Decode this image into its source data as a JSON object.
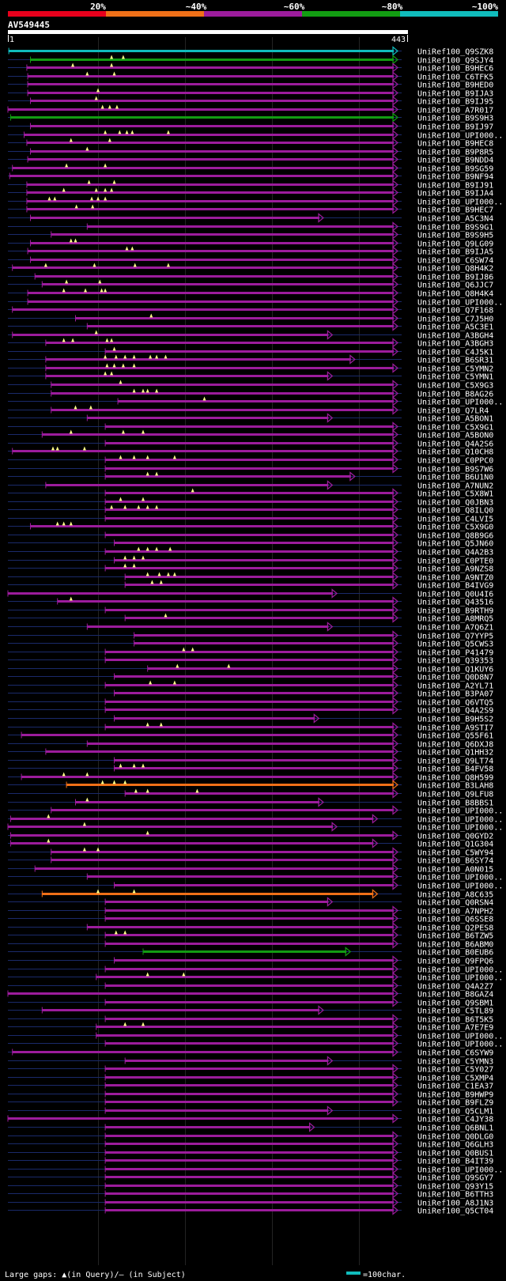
{
  "query": {
    "id": "AV549445",
    "start_label": "1",
    "end_label": "443",
    "length": 443
  },
  "identity_scale": {
    "labels": [
      "20%",
      "~40%",
      "~60%",
      "~80%",
      "~100%"
    ],
    "colors": [
      "#e8001c",
      "#f07018",
      "#9c1c9c",
      "#129c12",
      "#10bcbc"
    ]
  },
  "colors": {
    "background": "#000000",
    "grid": "#232323",
    "row_line": "#1a2a6a",
    "sample_line": "#10bcbc",
    "gap_marker": "#ffff88",
    "text": "#ffffff",
    "query_bar": "#ffffff"
  },
  "legend": {
    "text": "Large gaps: ▲(in Query)/– (in Subject)",
    "scale_text": "=100char."
  },
  "hits": [
    {
      "id": "UniRef100_Q9SZK8",
      "s": 1,
      "e": 443,
      "c": "#10bcbc",
      "g": []
    },
    {
      "id": "UniRef100_Q9SJY4",
      "s": 25,
      "e": 443,
      "c": "#129c12",
      "g": [
        115,
        128
      ]
    },
    {
      "id": "UniRef100_B9HEC6",
      "s": 21,
      "e": 440,
      "c": "#9c1c9c",
      "g": [
        72,
        115
      ]
    },
    {
      "id": "UniRef100_C6TFK5",
      "s": 22,
      "e": 440,
      "c": "#9c1c9c",
      "g": [
        88,
        118
      ]
    },
    {
      "id": "UniRef100_B9HED0",
      "s": 22,
      "e": 440,
      "c": "#9c1c9c",
      "g": []
    },
    {
      "id": "UniRef100_B9IJA3",
      "s": 22,
      "e": 437,
      "c": "#9c1c9c",
      "g": [
        100
      ]
    },
    {
      "id": "UniRef100_B9IJ95",
      "s": 25,
      "e": 437,
      "c": "#9c1c9c",
      "g": [
        98
      ]
    },
    {
      "id": "UniRef100_A7R017",
      "s": 0,
      "e": 440,
      "c": "#9c1c9c",
      "g": [
        105,
        113,
        121
      ]
    },
    {
      "id": "UniRef100_B9S9H3",
      "s": 3,
      "e": 440,
      "c": "#129c12",
      "g": []
    },
    {
      "id": "UniRef100_B9IJ97",
      "s": 25,
      "e": 437,
      "c": "#9c1c9c",
      "g": []
    },
    {
      "id": "UniRef100_UPI000..",
      "s": 18,
      "e": 437,
      "c": "#9c1c9c",
      "g": [
        108,
        124,
        132,
        138,
        178
      ]
    },
    {
      "id": "UniRef100_B9HEC8",
      "s": 21,
      "e": 437,
      "c": "#9c1c9c",
      "g": [
        70,
        113
      ]
    },
    {
      "id": "UniRef100_B9P8R5",
      "s": 25,
      "e": 437,
      "c": "#9c1c9c",
      "g": [
        88
      ]
    },
    {
      "id": "UniRef100_B9NDD4",
      "s": 22,
      "e": 437,
      "c": "#9c1c9c",
      "g": []
    },
    {
      "id": "UniRef100_B9SG59",
      "s": 5,
      "e": 440,
      "c": "#9c1c9c",
      "g": [
        65,
        108
      ]
    },
    {
      "id": "UniRef100_B9NF94",
      "s": 2,
      "e": 440,
      "c": "#9c1c9c",
      "g": []
    },
    {
      "id": "UniRef100_B9IJ91",
      "s": 21,
      "e": 440,
      "c": "#9c1c9c",
      "g": [
        90,
        118
      ]
    },
    {
      "id": "UniRef100_B9IJA4",
      "s": 21,
      "e": 440,
      "c": "#9c1c9c",
      "g": [
        62,
        98,
        108,
        115
      ]
    },
    {
      "id": "UniRef100_UPI000..",
      "s": 21,
      "e": 440,
      "c": "#9c1c9c",
      "g": [
        46,
        52,
        93,
        100,
        108
      ]
    },
    {
      "id": "UniRef100_B9HEC7",
      "s": 21,
      "e": 440,
      "c": "#9c1c9c",
      "g": [
        76,
        94
      ]
    },
    {
      "id": "UniRef100_A5C3N4",
      "s": 25,
      "e": 350,
      "c": "#9c1c9c",
      "g": []
    },
    {
      "id": "UniRef100_B9S9G1",
      "s": 88,
      "e": 437,
      "c": "#9c1c9c",
      "g": []
    },
    {
      "id": "UniRef100_B9S9H5",
      "s": 48,
      "e": 437,
      "c": "#9c1c9c",
      "g": []
    },
    {
      "id": "UniRef100_Q9LG09",
      "s": 25,
      "e": 437,
      "c": "#9c1c9c",
      "g": [
        70,
        75
      ]
    },
    {
      "id": "UniRef100_B9IJA5",
      "s": 22,
      "e": 440,
      "c": "#9c1c9c",
      "g": [
        132,
        138
      ]
    },
    {
      "id": "UniRef100_C6SW74",
      "s": 25,
      "e": 437,
      "c": "#9c1c9c",
      "g": []
    },
    {
      "id": "UniRef100_Q8H4K2",
      "s": 5,
      "e": 437,
      "c": "#9c1c9c",
      "g": [
        42,
        96,
        141,
        178
      ]
    },
    {
      "id": "UniRef100_B9IJ86",
      "s": 30,
      "e": 437,
      "c": "#9c1c9c",
      "g": []
    },
    {
      "id": "UniRef100_Q6JJC7",
      "s": 38,
      "e": 437,
      "c": "#9c1c9c",
      "g": [
        65,
        102
      ]
    },
    {
      "id": "UniRef100_Q8H4K4",
      "s": 22,
      "e": 437,
      "c": "#9c1c9c",
      "g": [
        62,
        86,
        104,
        108
      ]
    },
    {
      "id": "UniRef100_UPI000..",
      "s": 22,
      "e": 437,
      "c": "#9c1c9c",
      "g": []
    },
    {
      "id": "UniRef100_Q7F168",
      "s": 5,
      "e": 437,
      "c": "#9c1c9c",
      "g": []
    },
    {
      "id": "UniRef100_C7J5H0",
      "s": 75,
      "e": 437,
      "c": "#9c1c9c",
      "g": [
        159
      ]
    },
    {
      "id": "UniRef100_A5C3E1",
      "s": 88,
      "e": 437,
      "c": "#9c1c9c",
      "g": []
    },
    {
      "id": "UniRef100_A3BGH4",
      "s": 5,
      "e": 360,
      "c": "#9c1c9c",
      "g": [
        98
      ]
    },
    {
      "id": "UniRef100_A3BGH3",
      "s": 42,
      "e": 437,
      "c": "#9c1c9c",
      "g": [
        62,
        72,
        110,
        115
      ]
    },
    {
      "id": "UniRef100_C4J5K1",
      "s": 108,
      "e": 437,
      "c": "#9c1c9c",
      "g": [
        118
      ]
    },
    {
      "id": "UniRef100_B6SR31",
      "s": 42,
      "e": 385,
      "c": "#9c1c9c",
      "g": [
        108,
        120,
        130,
        140,
        158,
        165,
        175
      ]
    },
    {
      "id": "UniRef100_C5YMN2",
      "s": 42,
      "e": 437,
      "c": "#9c1c9c",
      "g": [
        110,
        118,
        128,
        140
      ]
    },
    {
      "id": "UniRef100_C5YMN1",
      "s": 42,
      "e": 360,
      "c": "#9c1c9c",
      "g": [
        108,
        115
      ]
    },
    {
      "id": "UniRef100_C5X9G3",
      "s": 48,
      "e": 437,
      "c": "#9c1c9c",
      "g": [
        125
      ]
    },
    {
      "id": "UniRef100_B8AG26",
      "s": 48,
      "e": 437,
      "c": "#9c1c9c",
      "g": [
        140,
        150,
        155,
        165
      ]
    },
    {
      "id": "UniRef100_UPI000..",
      "s": 122,
      "e": 440,
      "c": "#9c1c9c",
      "g": [
        218
      ]
    },
    {
      "id": "UniRef100_Q7LR4",
      "s": 48,
      "e": 437,
      "c": "#9c1c9c",
      "g": [
        75,
        92
      ]
    },
    {
      "id": "UniRef100_A5BON1",
      "s": 88,
      "e": 360,
      "c": "#9c1c9c",
      "g": []
    },
    {
      "id": "UniRef100_C5X9G1",
      "s": 108,
      "e": 437,
      "c": "#9c1c9c",
      "g": []
    },
    {
      "id": "UniRef100_A5BON0",
      "s": 38,
      "e": 437,
      "c": "#9c1c9c",
      "g": [
        70,
        128,
        150
      ]
    },
    {
      "id": "UniRef100_Q4A2S6",
      "s": 108,
      "e": 437,
      "c": "#9c1c9c",
      "g": []
    },
    {
      "id": "UniRef100_Q10CH8",
      "s": 5,
      "e": 437,
      "c": "#9c1c9c",
      "g": [
        50,
        55,
        85
      ]
    },
    {
      "id": "UniRef100_C0PPC0",
      "s": 108,
      "e": 437,
      "c": "#9c1c9c",
      "g": [
        125,
        140,
        155,
        185
      ]
    },
    {
      "id": "UniRef100_B9S7W6",
      "s": 108,
      "e": 437,
      "c": "#9c1c9c",
      "g": []
    },
    {
      "id": "UniRef100_B6U1N0",
      "s": 108,
      "e": 385,
      "c": "#9c1c9c",
      "g": [
        155,
        165
      ]
    },
    {
      "id": "UniRef100_A7NUN2",
      "s": 42,
      "e": 360,
      "c": "#9c1c9c",
      "g": []
    },
    {
      "id": "UniRef100_C5X8W1",
      "s": 108,
      "e": 437,
      "c": "#9c1c9c",
      "g": [
        205
      ]
    },
    {
      "id": "UniRef100_Q0JBN3",
      "s": 108,
      "e": 437,
      "c": "#9c1c9c",
      "g": [
        125,
        150
      ]
    },
    {
      "id": "UniRef100_Q8ILQ0",
      "s": 108,
      "e": 437,
      "c": "#9c1c9c",
      "g": [
        115,
        130,
        145,
        155,
        165
      ]
    },
    {
      "id": "UniRef100_C4LVI5",
      "s": 108,
      "e": 437,
      "c": "#9c1c9c",
      "g": []
    },
    {
      "id": "UniRef100_C5X9G0",
      "s": 25,
      "e": 437,
      "c": "#9c1c9c",
      "g": [
        55,
        62,
        70
      ]
    },
    {
      "id": "UniRef100_Q8B9G6",
      "s": 108,
      "e": 437,
      "c": "#9c1c9c",
      "g": []
    },
    {
      "id": "UniRef100_Q5JN60",
      "s": 118,
      "e": 437,
      "c": "#9c1c9c",
      "g": []
    },
    {
      "id": "UniRef100_Q4A2B3",
      "s": 108,
      "e": 437,
      "c": "#9c1c9c",
      "g": [
        145,
        155,
        165,
        180
      ]
    },
    {
      "id": "UniRef100_C0PTE0",
      "s": 118,
      "e": 437,
      "c": "#9c1c9c",
      "g": [
        130,
        140,
        150
      ]
    },
    {
      "id": "UniRef100_A9NZS8",
      "s": 108,
      "e": 437,
      "c": "#9c1c9c",
      "g": [
        130,
        140
      ]
    },
    {
      "id": "UniRef100_A9NTZ0",
      "s": 130,
      "e": 437,
      "c": "#9c1c9c",
      "g": [
        155,
        168,
        178,
        185
      ]
    },
    {
      "id": "UniRef100_B4IVG9",
      "s": 130,
      "e": 437,
      "c": "#9c1c9c",
      "g": [
        160,
        170
      ]
    },
    {
      "id": "UniRef100_Q0U4I6",
      "s": 0,
      "e": 365,
      "c": "#9c1c9c",
      "g": []
    },
    {
      "id": "UniRef100_Q43516",
      "s": 55,
      "e": 437,
      "c": "#9c1c9c",
      "g": [
        70
      ]
    },
    {
      "id": "UniRef100_B9RTH9",
      "s": 108,
      "e": 437,
      "c": "#9c1c9c",
      "g": []
    },
    {
      "id": "UniRef100_A8MRQ5",
      "s": 130,
      "e": 437,
      "c": "#9c1c9c",
      "g": [
        175
      ]
    },
    {
      "id": "UniRef100_A7Q6Z1",
      "s": 88,
      "e": 360,
      "c": "#9c1c9c",
      "g": []
    },
    {
      "id": "UniRef100_Q7YYP5",
      "s": 140,
      "e": 437,
      "c": "#9c1c9c",
      "g": []
    },
    {
      "id": "UniRef100_Q5CWS3",
      "s": 140,
      "e": 437,
      "c": "#9c1c9c",
      "g": []
    },
    {
      "id": "UniRef100_P41479",
      "s": 108,
      "e": 437,
      "c": "#9c1c9c",
      "g": [
        195,
        205
      ]
    },
    {
      "id": "UniRef100_Q39353",
      "s": 108,
      "e": 437,
      "c": "#9c1c9c",
      "g": []
    },
    {
      "id": "UniRef100_Q1KUY6",
      "s": 155,
      "e": 437,
      "c": "#9c1c9c",
      "g": [
        188,
        245
      ]
    },
    {
      "id": "UniRef100_Q0D8N7",
      "s": 118,
      "e": 437,
      "c": "#9c1c9c",
      "g": []
    },
    {
      "id": "UniRef100_A2YL71",
      "s": 108,
      "e": 437,
      "c": "#9c1c9c",
      "g": [
        158,
        185
      ]
    },
    {
      "id": "UniRef100_B3PA07",
      "s": 118,
      "e": 455,
      "c": "#9c1c9c",
      "g": []
    },
    {
      "id": "UniRef100_Q6VTQ5",
      "s": 108,
      "e": 437,
      "c": "#9c1c9c",
      "g": []
    },
    {
      "id": "UniRef100_Q4A2S9",
      "s": 108,
      "e": 437,
      "c": "#9c1c9c",
      "g": []
    },
    {
      "id": "UniRef100_B9H5S2",
      "s": 118,
      "e": 345,
      "c": "#9c1c9c",
      "g": []
    },
    {
      "id": "UniRef100_A9STI7",
      "s": 108,
      "e": 437,
      "c": "#9c1c9c",
      "g": [
        155,
        170
      ]
    },
    {
      "id": "UniRef100_Q55F61",
      "s": 15,
      "e": 437,
      "c": "#9c1c9c",
      "g": []
    },
    {
      "id": "UniRef100_Q6DXJ8",
      "s": 88,
      "e": 437,
      "c": "#9c1c9c",
      "g": []
    },
    {
      "id": "UniRef100_Q1HH32",
      "s": 42,
      "e": 437,
      "c": "#9c1c9c",
      "g": []
    },
    {
      "id": "UniRef100_Q9LT74",
      "s": 118,
      "e": 455,
      "c": "#9c1c9c",
      "g": []
    },
    {
      "id": "UniRef100_B4FV58",
      "s": 118,
      "e": 437,
      "c": "#9c1c9c",
      "g": [
        125,
        140,
        150
      ]
    },
    {
      "id": "UniRef100_Q8H599",
      "s": 15,
      "e": 437,
      "c": "#9c1c9c",
      "g": [
        62,
        88
      ]
    },
    {
      "id": "UniRef100_B3LAH8",
      "s": 65,
      "e": 437,
      "c": "#f07018",
      "g": [
        105,
        118,
        130
      ]
    },
    {
      "id": "UniRef100_Q9LFU8",
      "s": 130,
      "e": 437,
      "c": "#9c1c9c",
      "g": [
        142,
        155,
        210
      ]
    },
    {
      "id": "UniRef100_B8BBS1",
      "s": 75,
      "e": 350,
      "c": "#9c1c9c",
      "g": [
        88
      ]
    },
    {
      "id": "UniRef100_UPI000..",
      "s": 48,
      "e": 437,
      "c": "#9c1c9c",
      "g": []
    },
    {
      "id": "UniRef100_UPI000..",
      "s": 3,
      "e": 410,
      "c": "#9c1c9c",
      "g": [
        45
      ]
    },
    {
      "id": "UniRef100_UPI000..",
      "s": 0,
      "e": 365,
      "c": "#9c1c9c",
      "g": [
        85
      ]
    },
    {
      "id": "UniRef100_Q0GYD2",
      "s": 3,
      "e": 437,
      "c": "#9c1c9c",
      "g": [
        155
      ]
    },
    {
      "id": "UniRef100_Q1G304",
      "s": 3,
      "e": 410,
      "c": "#9c1c9c",
      "g": [
        45
      ]
    },
    {
      "id": "UniRef100_C5WY94",
      "s": 48,
      "e": 437,
      "c": "#9c1c9c",
      "g": [
        85,
        100
      ]
    },
    {
      "id": "UniRef100_B6SY74",
      "s": 48,
      "e": 437,
      "c": "#9c1c9c",
      "g": []
    },
    {
      "id": "UniRef100_A0N015",
      "s": 30,
      "e": 437,
      "c": "#9c1c9c",
      "g": []
    },
    {
      "id": "UniRef100_UPI000..",
      "s": 88,
      "e": 437,
      "c": "#9c1c9c",
      "g": []
    },
    {
      "id": "UniRef100_UPI000..",
      "s": 118,
      "e": 437,
      "c": "#9c1c9c",
      "g": []
    },
    {
      "id": "UniRef100_A8C635",
      "s": 38,
      "e": 410,
      "c": "#f07018",
      "g": [
        100,
        140
      ]
    },
    {
      "id": "UniRef100_Q0RSN4",
      "s": 108,
      "e": 360,
      "c": "#9c1c9c",
      "g": []
    },
    {
      "id": "UniRef100_A7NPH2",
      "s": 108,
      "e": 440,
      "c": "#9c1c9c",
      "g": []
    },
    {
      "id": "UniRef100_Q6SSE8",
      "s": 108,
      "e": 437,
      "c": "#9c1c9c",
      "g": []
    },
    {
      "id": "UniRef100_Q2PES8",
      "s": 88,
      "e": 437,
      "c": "#9c1c9c",
      "g": []
    },
    {
      "id": "UniRef100_B6TZW5",
      "s": 108,
      "e": 437,
      "c": "#9c1c9c",
      "g": [
        120,
        130
      ]
    },
    {
      "id": "UniRef100_B6ABM0",
      "s": 108,
      "e": 437,
      "c": "#9c1c9c",
      "g": []
    },
    {
      "id": "UniRef100_B0EUB6",
      "s": 150,
      "e": 380,
      "c": "#129c12",
      "g": []
    },
    {
      "id": "UniRef100_Q9FPQ6",
      "s": 118,
      "e": 437,
      "c": "#9c1c9c",
      "g": []
    },
    {
      "id": "UniRef100_UPI000..",
      "s": 108,
      "e": 437,
      "c": "#9c1c9c",
      "g": []
    },
    {
      "id": "UniRef100_UPI000..",
      "s": 98,
      "e": 437,
      "c": "#9c1c9c",
      "g": [
        155,
        195
      ]
    },
    {
      "id": "UniRef100_Q4A2Z7",
      "s": 108,
      "e": 437,
      "c": "#9c1c9c",
      "g": []
    },
    {
      "id": "UniRef100_B8GAZ4",
      "s": 0,
      "e": 437,
      "c": "#9c1c9c",
      "g": []
    },
    {
      "id": "UniRef100_Q9SBM1",
      "s": 108,
      "e": 437,
      "c": "#9c1c9c",
      "g": []
    },
    {
      "id": "UniRef100_C5TL89",
      "s": 38,
      "e": 350,
      "c": "#9c1c9c",
      "g": []
    },
    {
      "id": "UniRef100_B6T5K5",
      "s": 108,
      "e": 437,
      "c": "#9c1c9c",
      "g": []
    },
    {
      "id": "UniRef100_A7E7E9",
      "s": 98,
      "e": 437,
      "c": "#9c1c9c",
      "g": [
        130,
        150
      ]
    },
    {
      "id": "UniRef100_UPI000..",
      "s": 98,
      "e": 437,
      "c": "#9c1c9c",
      "g": []
    },
    {
      "id": "UniRef100_UPI000..",
      "s": 108,
      "e": 437,
      "c": "#9c1c9c",
      "g": []
    },
    {
      "id": "UniRef100_C6SYW9",
      "s": 5,
      "e": 437,
      "c": "#9c1c9c",
      "g": []
    },
    {
      "id": "UniRef100_C5YMN3",
      "s": 130,
      "e": 360,
      "c": "#9c1c9c",
      "g": []
    },
    {
      "id": "UniRef100_C5Y027",
      "s": 108,
      "e": 437,
      "c": "#9c1c9c",
      "g": []
    },
    {
      "id": "UniRef100_C5XMP4",
      "s": 108,
      "e": 437,
      "c": "#9c1c9c",
      "g": []
    },
    {
      "id": "UniRef100_C1EA37",
      "s": 108,
      "e": 437,
      "c": "#9c1c9c",
      "g": []
    },
    {
      "id": "UniRef100_B9HWP9",
      "s": 108,
      "e": 437,
      "c": "#9c1c9c",
      "g": []
    },
    {
      "id": "UniRef100_B9FLZ9",
      "s": 108,
      "e": 437,
      "c": "#9c1c9c",
      "g": []
    },
    {
      "id": "UniRef100_Q5CLM1",
      "s": 108,
      "e": 360,
      "c": "#9c1c9c",
      "g": []
    },
    {
      "id": "UniRef100_C4JY38",
      "s": 0,
      "e": 437,
      "c": "#9c1c9c",
      "g": []
    },
    {
      "id": "UniRef100_Q6BNL1",
      "s": 108,
      "e": 340,
      "c": "#9c1c9c",
      "g": []
    },
    {
      "id": "UniRef100_Q0DLG0",
      "s": 108,
      "e": 437,
      "c": "#9c1c9c",
      "g": []
    },
    {
      "id": "UniRef100_Q6GLH3",
      "s": 108,
      "e": 437,
      "c": "#9c1c9c",
      "g": []
    },
    {
      "id": "UniRef100_Q0BUS1",
      "s": 108,
      "e": 437,
      "c": "#9c1c9c",
      "g": []
    },
    {
      "id": "UniRef100_B4IT39",
      "s": 108,
      "e": 437,
      "c": "#9c1c9c",
      "g": []
    },
    {
      "id": "UniRef100_UPI000..",
      "s": 108,
      "e": 437,
      "c": "#9c1c9c",
      "g": []
    },
    {
      "id": "UniRef100_Q9SGY7",
      "s": 108,
      "e": 437,
      "c": "#9c1c9c",
      "g": []
    },
    {
      "id": "UniRef100_Q93Y15",
      "s": 108,
      "e": 437,
      "c": "#9c1c9c",
      "g": []
    },
    {
      "id": "UniRef100_B6TTH3",
      "s": 108,
      "e": 437,
      "c": "#9c1c9c",
      "g": []
    },
    {
      "id": "UniRef100_A8J1N3",
      "s": 108,
      "e": 437,
      "c": "#9c1c9c",
      "g": []
    },
    {
      "id": "UniRef100_Q5CT04",
      "s": 108,
      "e": 437,
      "c": "#9c1c9c",
      "g": []
    }
  ]
}
